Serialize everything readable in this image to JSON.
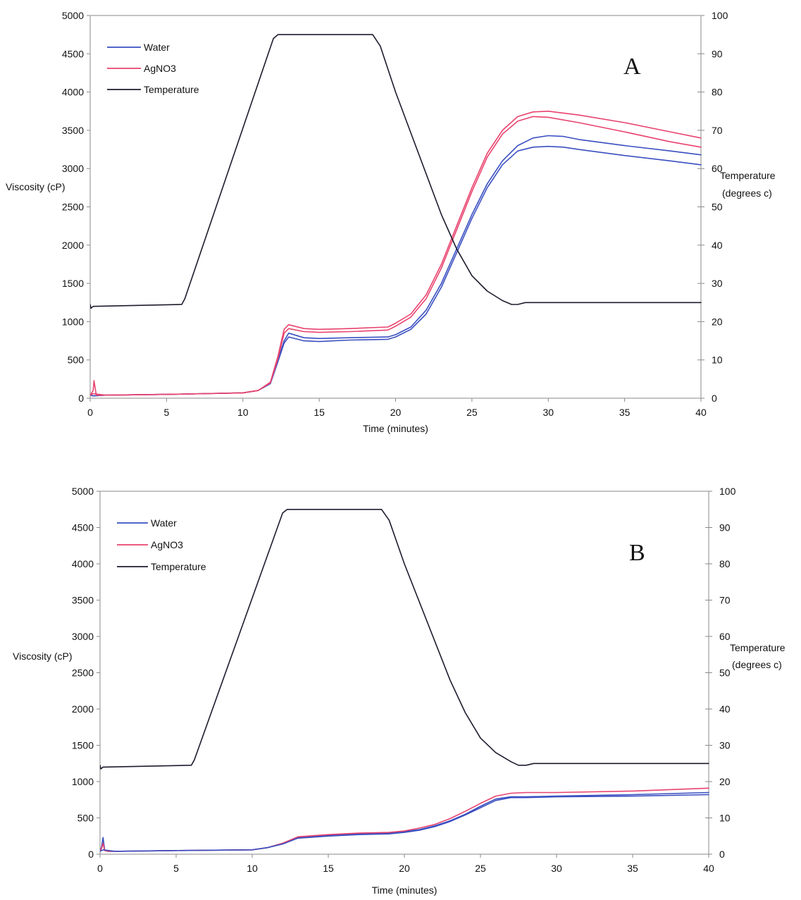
{
  "chart_data": [
    {
      "type": "line",
      "panel_label": "A",
      "xlabel": "Time (minutes)",
      "ylabel": "Viscosity (cP)",
      "y2label_line1": "Temperature",
      "y2label_line2": "(degrees c)",
      "xlim": [
        0,
        40
      ],
      "ylim": [
        0,
        5000
      ],
      "y2lim": [
        0,
        100
      ],
      "xticks": [
        "0",
        "5",
        "10",
        "15",
        "20",
        "25",
        "30",
        "35",
        "40"
      ],
      "yticks": [
        "0",
        "500",
        "1000",
        "1500",
        "2000",
        "2500",
        "3000",
        "3500",
        "4000",
        "4500",
        "5000"
      ],
      "y2ticks": [
        "0",
        "10",
        "20",
        "30",
        "40",
        "50",
        "60",
        "70",
        "80",
        "90",
        "100"
      ],
      "grid": false,
      "legend_position": "top-left",
      "legend": [
        "Water",
        "AgNO3",
        "Temperature"
      ],
      "colors": {
        "Water": "#3a4fc0",
        "AgNO3": "#e8436e",
        "Temperature": "#1c1c2e"
      },
      "series": [
        {
          "legend": "Water",
          "axis": "left",
          "x": [
            0,
            0.2,
            1,
            5,
            10,
            11,
            11.8,
            12.3,
            12.7,
            13,
            14,
            15,
            17,
            19.5,
            20,
            21,
            22,
            23,
            24,
            25,
            26,
            27,
            28,
            29,
            30,
            31,
            32,
            35,
            38,
            40
          ],
          "y": [
            40,
            30,
            40,
            50,
            70,
            100,
            200,
            500,
            750,
            850,
            790,
            780,
            790,
            800,
            830,
            930,
            1150,
            1500,
            1950,
            2400,
            2800,
            3100,
            3300,
            3400,
            3430,
            3420,
            3380,
            3300,
            3230,
            3180
          ]
        },
        {
          "legend": "Water",
          "axis": "left",
          "x": [
            0,
            0.2,
            1,
            5,
            10,
            11,
            11.8,
            12.3,
            12.7,
            13,
            14,
            15,
            17,
            19.5,
            20,
            21,
            22,
            23,
            24,
            25,
            26,
            27,
            28,
            29,
            30,
            31,
            32,
            35,
            38,
            40
          ],
          "y": [
            40,
            30,
            40,
            50,
            70,
            100,
            190,
            480,
            720,
            800,
            750,
            740,
            760,
            770,
            800,
            900,
            1100,
            1450,
            1900,
            2350,
            2750,
            3050,
            3230,
            3280,
            3290,
            3280,
            3250,
            3170,
            3100,
            3050
          ]
        },
        {
          "legend": "AgNO3",
          "axis": "left",
          "x": [
            0,
            0.2,
            0.25,
            0.4,
            1,
            5,
            10,
            11,
            11.8,
            12.3,
            12.7,
            13,
            14,
            15,
            17,
            19.5,
            20,
            21,
            22,
            23,
            24,
            25,
            26,
            27,
            28,
            29,
            30,
            32,
            35,
            38,
            40
          ],
          "y": [
            40,
            100,
            230,
            40,
            40,
            50,
            70,
            100,
            210,
            550,
            900,
            960,
            910,
            900,
            910,
            930,
            980,
            1100,
            1350,
            1750,
            2250,
            2750,
            3200,
            3500,
            3680,
            3740,
            3750,
            3700,
            3600,
            3480,
            3400
          ]
        },
        {
          "legend": "AgNO3",
          "axis": "left",
          "x": [
            0,
            0.2,
            1,
            5,
            10,
            11,
            11.8,
            12.3,
            12.7,
            13,
            14,
            15,
            17,
            19.5,
            20,
            21,
            22,
            23,
            24,
            25,
            26,
            27,
            28,
            29,
            30,
            32,
            35,
            38,
            40
          ],
          "y": [
            40,
            60,
            40,
            50,
            70,
            100,
            200,
            520,
            850,
            910,
            870,
            860,
            870,
            890,
            940,
            1060,
            1300,
            1700,
            2200,
            2700,
            3150,
            3450,
            3620,
            3680,
            3670,
            3600,
            3480,
            3350,
            3280
          ]
        },
        {
          "legend": "Temperature",
          "axis": "right",
          "x": [
            0,
            0.05,
            0.2,
            6,
            6.2,
            12,
            12.3,
            18.5,
            19,
            20,
            23,
            24,
            25,
            26,
            27,
            27.6,
            28,
            28.5,
            40
          ],
          "y": [
            24.5,
            23.5,
            24,
            24.5,
            26,
            94,
            95,
            95,
            92,
            80,
            48,
            39,
            32,
            28,
            25.5,
            24.5,
            24.5,
            25,
            25
          ]
        }
      ]
    },
    {
      "type": "line",
      "panel_label": "B",
      "xlabel": "Time (minutes)",
      "ylabel": "Viscosity (cP)",
      "y2label_line1": "Temperature",
      "y2label_line2": "(degrees c)",
      "xlim": [
        0,
        40
      ],
      "ylim": [
        0,
        5000
      ],
      "y2lim": [
        0,
        100
      ],
      "xticks": [
        "0",
        "5",
        "10",
        "15",
        "20",
        "25",
        "30",
        "35",
        "40"
      ],
      "yticks": [
        "0",
        "500",
        "1000",
        "1500",
        "2000",
        "2500",
        "3000",
        "3500",
        "4000",
        "4500",
        "5000"
      ],
      "y2ticks": [
        "0",
        "10",
        "20",
        "30",
        "40",
        "50",
        "60",
        "70",
        "80",
        "90",
        "100"
      ],
      "grid": false,
      "legend_position": "top-left",
      "legend": [
        "Water",
        "AgNO3",
        "Temperature"
      ],
      "colors": {
        "Water": "#3a4fc0",
        "AgNO3": "#e8436e",
        "Temperature": "#1c1c2e"
      },
      "series": [
        {
          "legend": "Water",
          "axis": "left",
          "x": [
            0,
            0.1,
            0.2,
            0.3,
            0.5,
            1,
            5,
            10,
            11,
            12,
            13,
            15,
            17,
            19,
            20,
            21,
            22,
            23,
            24,
            25,
            26,
            27,
            28,
            30,
            35,
            40
          ],
          "y": [
            40,
            100,
            230,
            60,
            40,
            40,
            50,
            60,
            90,
            150,
            230,
            260,
            280,
            290,
            310,
            340,
            390,
            460,
            550,
            660,
            760,
            790,
            790,
            800,
            820,
            850
          ]
        },
        {
          "legend": "AgNO3",
          "axis": "left",
          "x": [
            0,
            0.1,
            0.2,
            0.3,
            0.5,
            1,
            5,
            10,
            11,
            12,
            13,
            15,
            17,
            19,
            20,
            21,
            22,
            23,
            24,
            25,
            26,
            27,
            28,
            30,
            35,
            40
          ],
          "y": [
            40,
            80,
            150,
            50,
            40,
            40,
            50,
            60,
            90,
            150,
            240,
            270,
            290,
            300,
            320,
            360,
            410,
            490,
            590,
            700,
            800,
            840,
            850,
            850,
            870,
            910
          ]
        },
        {
          "legend": "Water",
          "axis": "left",
          "x": [
            0,
            0.2,
            1,
            5,
            10,
            11,
            12,
            13,
            15,
            17,
            19,
            20,
            21,
            22,
            23,
            24,
            25,
            26,
            27,
            28,
            30,
            35,
            40
          ],
          "y": [
            40,
            60,
            40,
            50,
            60,
            90,
            140,
            220,
            250,
            270,
            280,
            300,
            330,
            380,
            450,
            540,
            640,
            740,
            780,
            780,
            790,
            800,
            820
          ]
        },
        {
          "legend": "Temperature",
          "axis": "right",
          "x": [
            0,
            0.05,
            0.2,
            6,
            6.2,
            12,
            12.3,
            18.5,
            19,
            20,
            23,
            24,
            25,
            26,
            27,
            27.5,
            28,
            28.5,
            40
          ],
          "y": [
            24.5,
            23.5,
            24,
            24.5,
            26,
            94,
            95,
            95,
            92,
            80,
            48,
            39,
            32,
            28,
            25.5,
            24.5,
            24.5,
            25,
            25
          ]
        }
      ]
    }
  ]
}
